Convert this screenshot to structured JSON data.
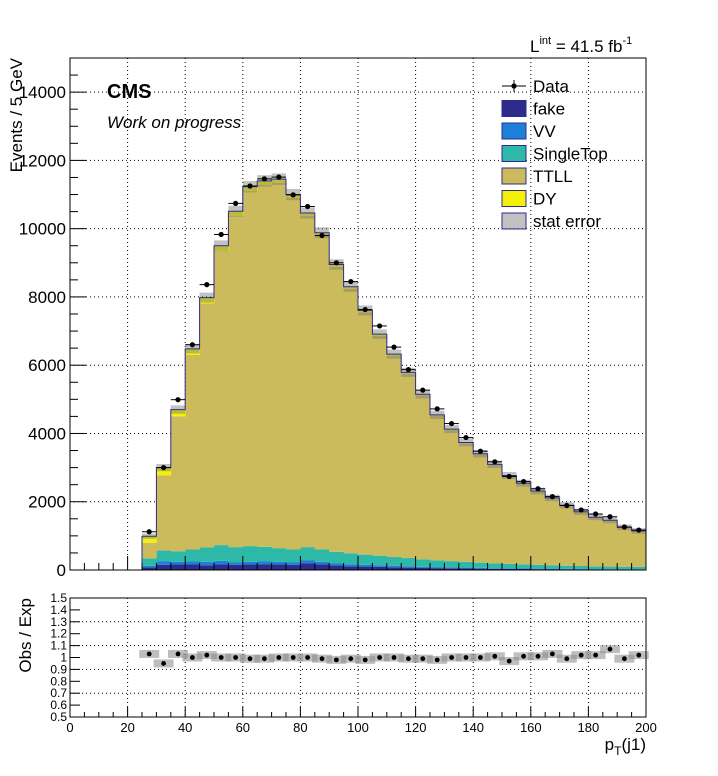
{
  "header": {
    "lumi_prefix": "L",
    "lumi_sup": "int",
    "lumi_value": " = 41.5 fb",
    "lumi_unit_sup": "-1",
    "experiment": "CMS",
    "status": "Work on progress"
  },
  "colors": {
    "fake": "#2e2c8a",
    "VV": "#1c7fd8",
    "SingleTop": "#2db8a8",
    "TTLL": "#cbbb5c",
    "DY": "#f4f00a",
    "data": "#000000",
    "grid": "#000000"
  },
  "chart_data": [
    {
      "type": "bar",
      "subtype": "stacked-histogram",
      "xlabel": "",
      "ylabel": "Events / 5 GeV",
      "xlim": [
        0,
        200
      ],
      "ylim": [
        0,
        15000
      ],
      "x_ticks": [
        "0",
        "20",
        "40",
        "60",
        "80",
        "100",
        "120",
        "140",
        "160",
        "180",
        "200"
      ],
      "y_ticks": [
        "0",
        "2000",
        "4000",
        "6000",
        "8000",
        "10000",
        "12000",
        "14000"
      ],
      "grid": true,
      "legend_position": "top-right",
      "legend": [
        "Data",
        "fake",
        "VV",
        "SingleTop",
        "TTLL",
        "DY",
        "stat error"
      ],
      "bin_edges": [
        25,
        30,
        35,
        40,
        45,
        50,
        55,
        60,
        65,
        70,
        75,
        80,
        85,
        90,
        95,
        100,
        105,
        110,
        115,
        120,
        125,
        130,
        135,
        140,
        145,
        150,
        155,
        160,
        165,
        170,
        175,
        180,
        185,
        190,
        195,
        200
      ],
      "series": [
        {
          "name": "fake",
          "values": [
            80,
            150,
            160,
            160,
            140,
            160,
            150,
            160,
            170,
            160,
            150,
            200,
            170,
            130,
            110,
            100,
            90,
            80,
            70,
            60,
            55,
            50,
            45,
            40,
            35,
            30,
            30,
            25,
            25,
            20,
            20,
            15,
            15,
            15,
            15
          ]
        },
        {
          "name": "VV",
          "values": [
            40,
            110,
            80,
            90,
            100,
            110,
            70,
            80,
            80,
            80,
            70,
            90,
            70,
            60,
            60,
            50,
            50,
            40,
            40,
            35,
            30,
            30,
            25,
            25,
            20,
            20,
            15,
            15,
            15,
            15,
            12,
            12,
            10,
            10,
            10
          ]
        },
        {
          "name": "SingleTop",
          "values": [
            220,
            310,
            310,
            350,
            420,
            460,
            450,
            460,
            430,
            400,
            380,
            380,
            360,
            340,
            320,
            300,
            280,
            260,
            240,
            220,
            200,
            180,
            170,
            150,
            140,
            130,
            120,
            110,
            100,
            90,
            85,
            80,
            75,
            70,
            65
          ]
        },
        {
          "name": "TTLL",
          "values": [
            460,
            2200,
            3950,
            5700,
            7150,
            8620,
            9700,
            10400,
            10600,
            10700,
            10300,
            9700,
            9200,
            8350,
            7750,
            7100,
            6440,
            5900,
            5400,
            4800,
            4230,
            3840,
            3470,
            3170,
            2880,
            2570,
            2360,
            2150,
            1960,
            1760,
            1580,
            1430,
            1350,
            1150,
            1050
          ]
        },
        {
          "name": "DY",
          "values": [
            190,
            230,
            200,
            180,
            170,
            150,
            140,
            130,
            120,
            110,
            100,
            90,
            80,
            70,
            60,
            55,
            50,
            45,
            40,
            35,
            30,
            28,
            25,
            22,
            20,
            18,
            16,
            14,
            12,
            11,
            10,
            9,
            8,
            7,
            6
          ]
        }
      ],
      "data_points": [
        1120,
        3000,
        4990,
        6600,
        8360,
        9830,
        10740,
        11250,
        11460,
        11510,
        10990,
        10650,
        9800,
        9000,
        8450,
        7630,
        7150,
        6530,
        5870,
        5270,
        4720,
        4290,
        3880,
        3480,
        3170,
        2740,
        2590,
        2380,
        2150,
        1890,
        1760,
        1640,
        1560,
        1260,
        1170
      ]
    },
    {
      "type": "scatter",
      "subtype": "ratio",
      "xlabel": "p_T(j1)",
      "xlabel_main": "p",
      "xlabel_sub": "T",
      "xlabel_rest": "(j1)",
      "ylabel": "Obs / Exp",
      "xlim": [
        0,
        200
      ],
      "ylim": [
        0.5,
        1.5
      ],
      "x_ticks": [
        "0",
        "20",
        "40",
        "60",
        "80",
        "100",
        "120",
        "140",
        "160",
        "180",
        "200"
      ],
      "y_ticks": [
        "0.5",
        "0.6",
        "0.7",
        "0.8",
        "0.9",
        "1",
        "1.1",
        "1.2",
        "1.3",
        "1.4",
        "1.5"
      ],
      "grid": true,
      "x": [
        27.5,
        32.5,
        37.5,
        42.5,
        47.5,
        52.5,
        57.5,
        62.5,
        67.5,
        72.5,
        77.5,
        82.5,
        87.5,
        92.5,
        97.5,
        102.5,
        107.5,
        112.5,
        117.5,
        122.5,
        127.5,
        132.5,
        137.5,
        142.5,
        147.5,
        152.5,
        157.5,
        162.5,
        167.5,
        172.5,
        177.5,
        182.5,
        187.5,
        192.5,
        197.5
      ],
      "values": [
        1.03,
        0.95,
        1.03,
        1.0,
        1.02,
        1.0,
        1.0,
        0.99,
        0.99,
        1.0,
        1.0,
        1.0,
        0.99,
        0.98,
        0.99,
        0.98,
        1.0,
        1.0,
        0.99,
        0.99,
        0.98,
        1.0,
        1.0,
        1.0,
        1.01,
        0.97,
        1.01,
        1.01,
        1.03,
        0.99,
        1.02,
        1.02,
        1.07,
        0.99,
        1.02
      ]
    }
  ]
}
